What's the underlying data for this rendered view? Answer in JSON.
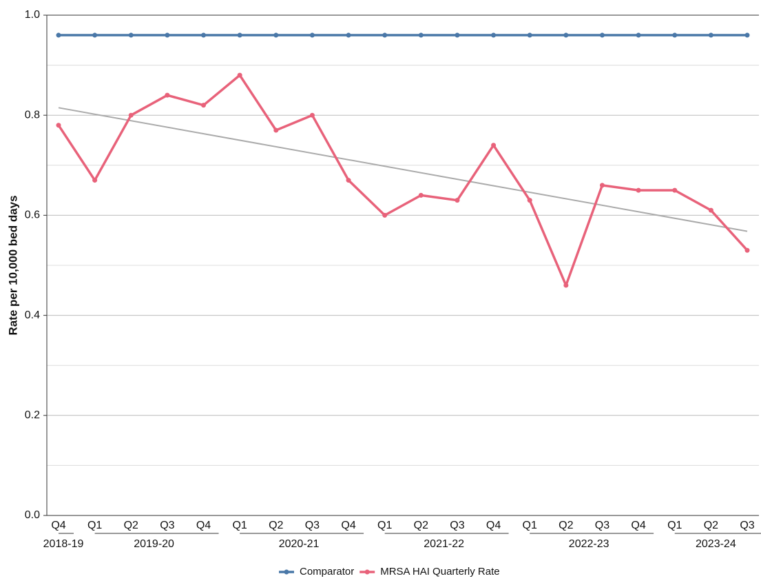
{
  "chart_data": {
    "type": "line",
    "y_label": "Rate per 10,000 bed days",
    "categories": [
      "Q4",
      "Q1",
      "Q2",
      "Q3",
      "Q4",
      "Q1",
      "Q2",
      "Q3",
      "Q4",
      "Q1",
      "Q2",
      "Q3",
      "Q4",
      "Q1",
      "Q2",
      "Q3",
      "Q4",
      "Q1",
      "Q2",
      "Q3"
    ],
    "groups": [
      {
        "label": "2018-19",
        "count": 1
      },
      {
        "label": "2019-20",
        "count": 4
      },
      {
        "label": "2020-21",
        "count": 4
      },
      {
        "label": "2021-22",
        "count": 4
      },
      {
        "label": "2022-23",
        "count": 4
      },
      {
        "label": "2023-24",
        "count": 3
      }
    ],
    "series": [
      {
        "name": "Comparator",
        "color": "#4a78a8",
        "values": [
          0.96,
          0.96,
          0.96,
          0.96,
          0.96,
          0.96,
          0.96,
          0.96,
          0.96,
          0.96,
          0.96,
          0.96,
          0.96,
          0.96,
          0.96,
          0.96,
          0.96,
          0.96,
          0.96,
          0.96
        ]
      },
      {
        "name": "MRSA HAI Quarterly Rate",
        "color": "#e8627a",
        "values": [
          0.78,
          0.67,
          0.8,
          0.84,
          0.82,
          0.88,
          0.77,
          0.8,
          0.67,
          0.6,
          0.64,
          0.63,
          0.74,
          0.63,
          0.46,
          0.66,
          0.65,
          0.65,
          0.61,
          0.53
        ]
      }
    ],
    "trend": {
      "start": 0.815,
      "end": 0.568,
      "color": "#aaaaaa"
    },
    "ylim": [
      0,
      1
    ],
    "yticks": [
      {
        "value": 0,
        "label": "0.0"
      },
      0.2,
      0.4,
      0.6,
      0.8,
      {
        "value": 1,
        "label": "1.0"
      }
    ],
    "minor_yticks": [
      0.1,
      0.3,
      0.5,
      0.7,
      0.9
    ],
    "grid": true,
    "legend": "bottom"
  }
}
